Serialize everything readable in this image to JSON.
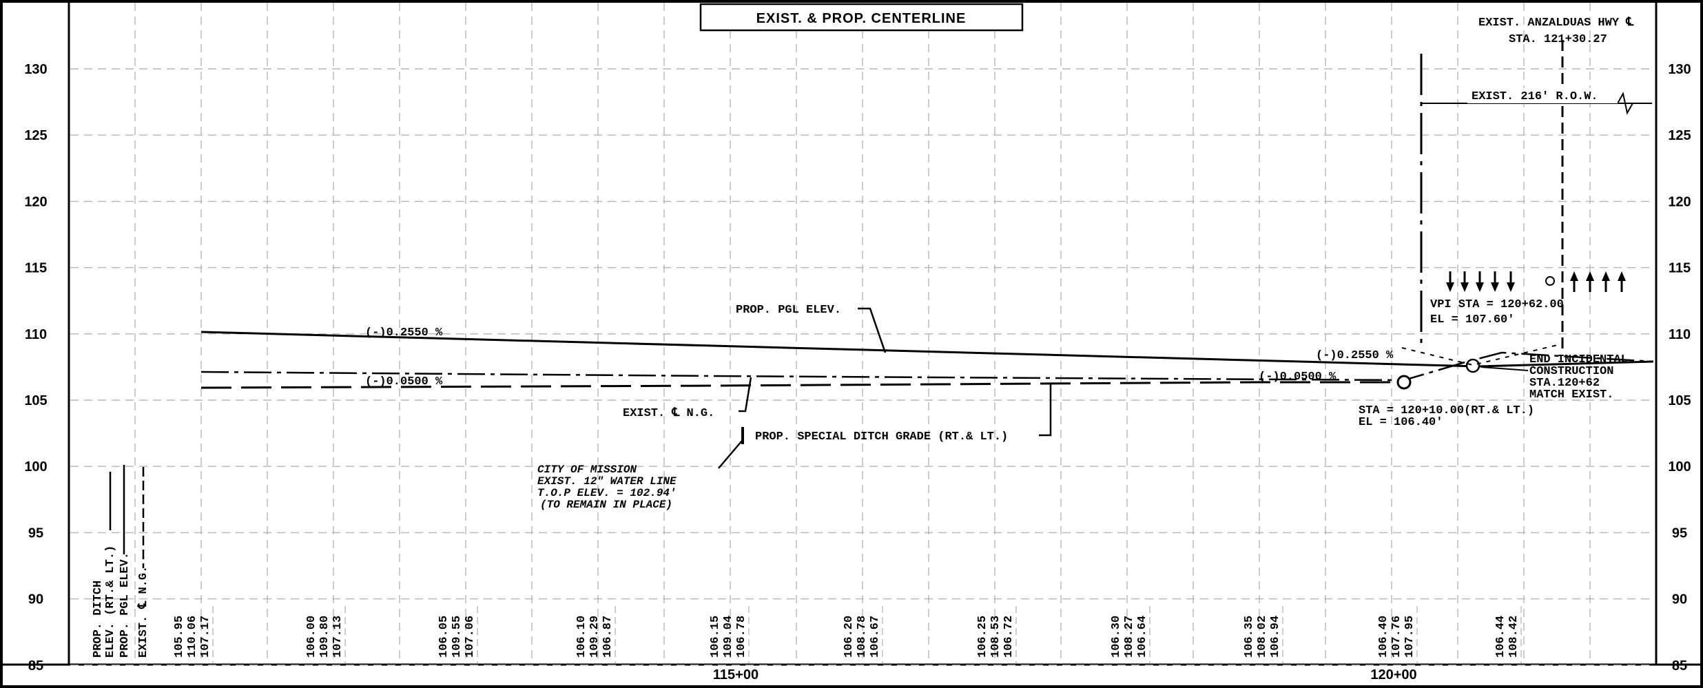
{
  "title": "EXIST. & PROP. CENTERLINE",
  "elevation_labels": [
    "130",
    "125",
    "120",
    "115",
    "110",
    "105",
    "100",
    "95",
    "90",
    "85"
  ],
  "station_labels": [
    "115+00",
    "120+00"
  ],
  "row_labels": {
    "ditch": "PROP. DITCH ELEV. (RT.& LT.)",
    "ditch_line1": "PROP. DITCH",
    "ditch_line2": "ELEV. (RT.& LT.)",
    "pgl": "PROP. PGL ELEV.",
    "ng": "EXIST. ℄ N.G."
  },
  "elevation_columns": [
    [
      "105.95",
      "110.06",
      "107.17"
    ],
    [
      "106.00",
      "109.80",
      "107.13"
    ],
    [
      "106.05",
      "109.55",
      "107.06"
    ],
    [
      "106.10",
      "109.29",
      "106.87"
    ],
    [
      "106.15",
      "109.04",
      "106.78"
    ],
    [
      "106.20",
      "108.78",
      "106.67"
    ],
    [
      "106.25",
      "108.53",
      "106.72"
    ],
    [
      "106.30",
      "108.27",
      "106.64"
    ],
    [
      "106.35",
      "108.02",
      "106.94"
    ],
    [
      "106.40",
      "107.76",
      "107.95"
    ],
    [
      "106.44",
      "108.42"
    ]
  ],
  "annotations": {
    "pgl_label": "PROP. PGL ELEV.",
    "grade_1": "(-)0.2550 %",
    "grade_2": "(-)0.0500 %",
    "grade_3": "(-)0.2550 %",
    "grade_4": "(-)0.0500 %",
    "exist_ng": "EXIST. ℄ N.G.",
    "ditch_grade": "PROP. SPECIAL DITCH GRADE (RT.& LT.)",
    "water_line_1": "CITY OF MISSION",
    "water_line_2": "EXIST. 12\" WATER LINE",
    "water_line_3": "T.O.P ELEV. = 102.94'",
    "water_line_4": "(TO REMAIN IN PLACE)",
    "hwy_1": "EXIST. ANZALDUAS HWY ℄",
    "hwy_2": "STA. 121+30.27",
    "row": "EXIST. 216' R.O.W.",
    "vpi_1": "VPI STA = 120+62.00",
    "vpi_2": "EL   = 107.60'",
    "end_1": "END INCIDENTAL",
    "end_2": "CONSTRUCTION",
    "end_3": "STA.120+62",
    "end_4": "MATCH EXIST.",
    "sta_1": "STA = 120+10.00(RT.& LT.)",
    "sta_2": "EL  = 106.40'"
  }
}
